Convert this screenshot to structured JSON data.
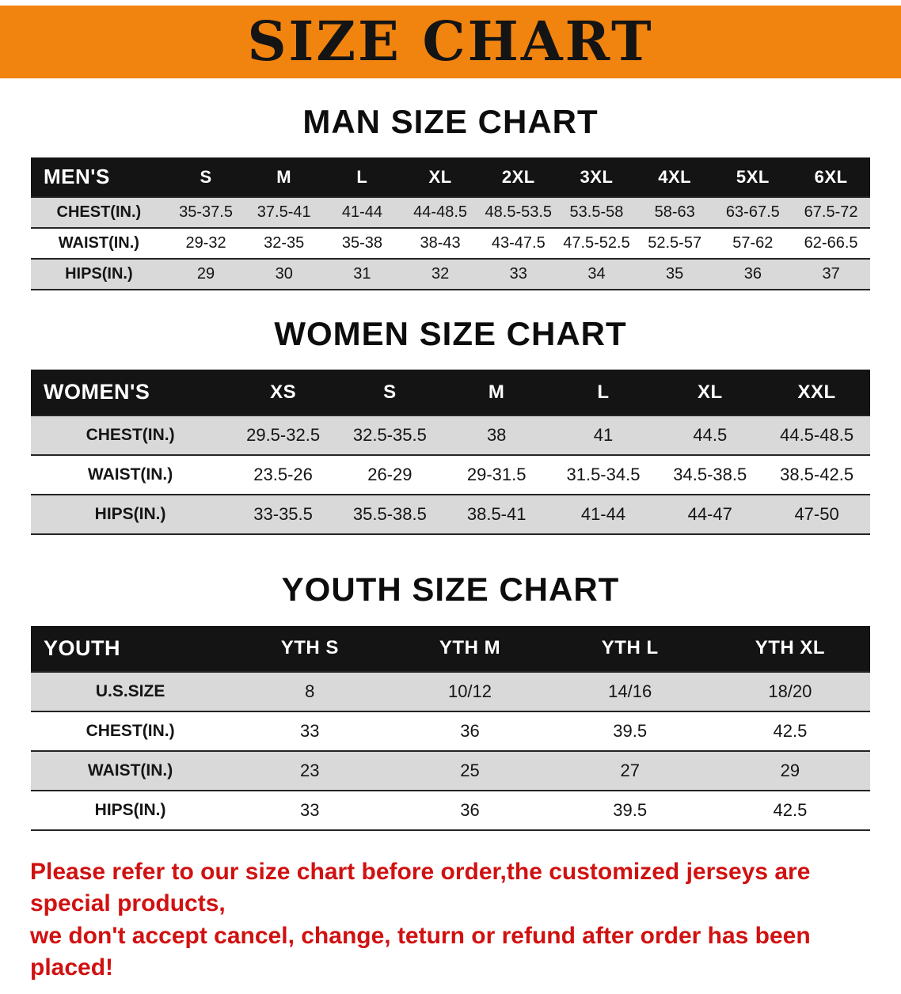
{
  "banner": {
    "title": "SIZE CHART",
    "bg_color": "#f1830f",
    "text_color": "#141414"
  },
  "colors": {
    "table_header_bg": "#141414",
    "table_header_text": "#ffffff",
    "row_stripe": "#d9d9d9",
    "disclaimer_red": "#d11111"
  },
  "sections": [
    {
      "heading": "MAN SIZE CHART",
      "table": {
        "header": [
          "MEN'S",
          "S",
          "M",
          "L",
          "XL",
          "2XL",
          "3XL",
          "4XL",
          "5XL",
          "6XL"
        ],
        "rows": [
          [
            "CHEST(IN.)",
            "35-37.5",
            "37.5-41",
            "41-44",
            "44-48.5",
            "48.5-53.5",
            "53.5-58",
            "58-63",
            "63-67.5",
            "67.5-72"
          ],
          [
            "WAIST(IN.)",
            "29-32",
            "32-35",
            "35-38",
            "38-43",
            "43-47.5",
            "47.5-52.5",
            "52.5-57",
            "57-62",
            "62-66.5"
          ],
          [
            "HIPS(IN.)",
            "29",
            "30",
            "31",
            "32",
            "33",
            "34",
            "35",
            "36",
            "37"
          ]
        ]
      }
    },
    {
      "heading": "WOMEN SIZE CHART",
      "table": {
        "header": [
          "WOMEN'S",
          "XS",
          "S",
          "M",
          "L",
          "XL",
          "XXL"
        ],
        "rows": [
          [
            "CHEST(IN.)",
            "29.5-32.5",
            "32.5-35.5",
            "38",
            "41",
            "44.5",
            "44.5-48.5"
          ],
          [
            "WAIST(IN.)",
            "23.5-26",
            "26-29",
            "29-31.5",
            "31.5-34.5",
            "34.5-38.5",
            "38.5-42.5"
          ],
          [
            "HIPS(IN.)",
            "33-35.5",
            "35.5-38.5",
            "38.5-41",
            "41-44",
            "44-47",
            "47-50"
          ]
        ]
      }
    },
    {
      "heading": "YOUTH SIZE CHART",
      "table": {
        "header": [
          "YOUTH",
          "YTH S",
          "YTH M",
          "YTH L",
          "YTH XL"
        ],
        "rows": [
          [
            "U.S.SIZE",
            "8",
            "10/12",
            "14/16",
            "18/20"
          ],
          [
            "CHEST(IN.)",
            "33",
            "36",
            "39.5",
            "42.5"
          ],
          [
            "WAIST(IN.)",
            "23",
            "25",
            "27",
            "29"
          ],
          [
            "HIPS(IN.)",
            "33",
            "36",
            "39.5",
            "42.5"
          ]
        ]
      }
    }
  ],
  "footer": {
    "line1": "Please refer to our size chart before order,the customized jerseys are special products,",
    "line2": "we don't accept cancel, change, teturn or refund after order has been placed!"
  }
}
